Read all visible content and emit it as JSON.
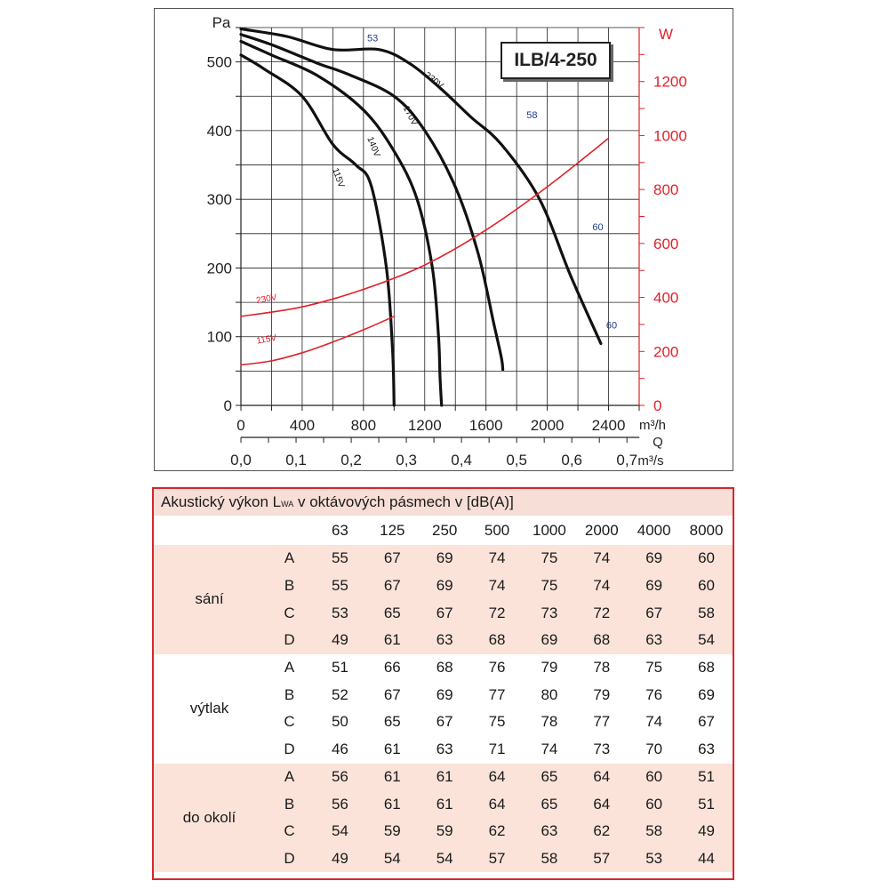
{
  "chart_data": {
    "type": "line",
    "model_label": "ILB/4-250",
    "y_left": {
      "unit": "Pa",
      "ticks": [
        0,
        100,
        200,
        300,
        400,
        500
      ],
      "ylim": [
        0,
        550
      ]
    },
    "y_right": {
      "unit": "W",
      "ticks": [
        0,
        200,
        400,
        600,
        800,
        1000,
        1200
      ],
      "ylim": [
        0,
        1400
      ]
    },
    "x_main": {
      "unit": "m³/h",
      "ticks": [
        0,
        400,
        800,
        1200,
        1600,
        2000,
        2400
      ],
      "xlim": [
        0,
        2600
      ]
    },
    "x_secondary": {
      "unit": "m³/s",
      "symbol": "Q",
      "ticks": [
        "0,0",
        "0,1",
        "0,2",
        "0,3",
        "0,4",
        "0,5",
        "0,6",
        "0,7"
      ],
      "tick_values": [
        0,
        0.1,
        0.2,
        0.3,
        0.4,
        0.5,
        0.6,
        0.7
      ]
    },
    "grid": true,
    "pressure_series": [
      {
        "name": "230V",
        "axis": "left",
        "x": [
          0,
          300,
          600,
          900,
          1100,
          1300,
          1500,
          1700,
          1950,
          2150,
          2350
        ],
        "y": [
          548,
          537,
          518,
          518,
          498,
          462,
          420,
          380,
          300,
          190,
          90
        ]
      },
      {
        "name": "170V",
        "axis": "left",
        "x": [
          0,
          200,
          500,
          700,
          1000,
          1200,
          1400,
          1550,
          1650,
          1700,
          1710
        ],
        "y": [
          540,
          525,
          498,
          482,
          450,
          400,
          318,
          220,
          120,
          70,
          52
        ]
      },
      {
        "name": "140V",
        "axis": "left",
        "x": [
          0,
          200,
          500,
          800,
          1000,
          1150,
          1250,
          1290,
          1300,
          1310
        ],
        "y": [
          530,
          510,
          480,
          430,
          370,
          300,
          200,
          100,
          40,
          0
        ]
      },
      {
        "name": "115V",
        "axis": "left",
        "x": [
          0,
          150,
          400,
          600,
          750,
          850,
          950,
          990,
          1000
        ],
        "y": [
          510,
          490,
          450,
          380,
          350,
          320,
          200,
          80,
          0
        ]
      }
    ],
    "power_series": [
      {
        "name": "230V",
        "axis": "right",
        "x": [
          0,
          400,
          800,
          1200,
          1600,
          2000,
          2400
        ],
        "y": [
          330,
          365,
          430,
          520,
          650,
          810,
          990
        ]
      },
      {
        "name": "115V",
        "axis": "right",
        "x": [
          0,
          200,
          400,
          600,
          800,
          1000
        ],
        "y": [
          150,
          165,
          195,
          235,
          280,
          330
        ]
      }
    ],
    "annotations": [
      {
        "text": "53",
        "x": 860,
        "y": 530
      },
      {
        "text": "58",
        "x": 1900,
        "y": 418
      },
      {
        "text": "60",
        "x": 2330,
        "y": 255
      },
      {
        "text": "60",
        "x": 2420,
        "y": 112
      }
    ]
  },
  "table": {
    "title_pre": "Akustický výkon L",
    "title_sub": "WA",
    "title_post": " v oktávových pásmech v [dB(A)]",
    "bands": [
      "63",
      "125",
      "250",
      "500",
      "1000",
      "2000",
      "4000",
      "8000"
    ],
    "groups": [
      {
        "name": "sání",
        "rows": [
          {
            "label": "A",
            "values": [
              "55",
              "67",
              "69",
              "74",
              "75",
              "74",
              "69",
              "60"
            ]
          },
          {
            "label": "B",
            "values": [
              "55",
              "67",
              "69",
              "74",
              "75",
              "74",
              "69",
              "60"
            ]
          },
          {
            "label": "C",
            "values": [
              "53",
              "65",
              "67",
              "72",
              "73",
              "72",
              "67",
              "58"
            ]
          },
          {
            "label": "D",
            "values": [
              "49",
              "61",
              "63",
              "68",
              "69",
              "68",
              "63",
              "54"
            ]
          }
        ]
      },
      {
        "name": "výtlak",
        "rows": [
          {
            "label": "A",
            "values": [
              "51",
              "66",
              "68",
              "76",
              "79",
              "78",
              "75",
              "68"
            ]
          },
          {
            "label": "B",
            "values": [
              "52",
              "67",
              "69",
              "77",
              "80",
              "79",
              "76",
              "69"
            ]
          },
          {
            "label": "C",
            "values": [
              "50",
              "65",
              "67",
              "75",
              "78",
              "77",
              "74",
              "67"
            ]
          },
          {
            "label": "D",
            "values": [
              "46",
              "61",
              "63",
              "71",
              "74",
              "73",
              "70",
              "63"
            ]
          }
        ]
      },
      {
        "name": "do okolí",
        "rows": [
          {
            "label": "A",
            "values": [
              "56",
              "61",
              "61",
              "64",
              "65",
              "64",
              "60",
              "51"
            ]
          },
          {
            "label": "B",
            "values": [
              "56",
              "61",
              "61",
              "64",
              "65",
              "64",
              "60",
              "51"
            ]
          },
          {
            "label": "C",
            "values": [
              "54",
              "59",
              "59",
              "62",
              "63",
              "62",
              "58",
              "49"
            ]
          },
          {
            "label": "D",
            "values": [
              "49",
              "54",
              "54",
              "57",
              "58",
              "57",
              "53",
              "44"
            ]
          }
        ]
      }
    ],
    "colors": {
      "border": "#d7262e",
      "shade": "#fbe3da",
      "caption_bg": "#f7ded6"
    }
  },
  "colors": {
    "pressure_line": "#111111",
    "power_line": "#e0202a",
    "right_axis": "#e0202a",
    "annotation": "#1c3c8c"
  }
}
